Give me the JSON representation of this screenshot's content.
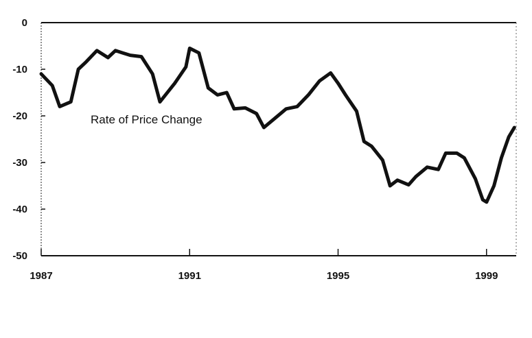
{
  "chart_data": {
    "type": "line",
    "title": "",
    "xlabel": "",
    "ylabel": "",
    "xlim": [
      1987,
      1999.8
    ],
    "ylim": [
      -50,
      0
    ],
    "x_ticks": [
      1987,
      1991,
      1995,
      1999
    ],
    "y_ticks": [
      0,
      -10,
      -20,
      -30,
      -40,
      -50
    ],
    "x_tick_labels": [
      "1987",
      "1991",
      "1995",
      "1999"
    ],
    "y_tick_labels": [
      "0",
      "-10",
      "-20",
      "-30",
      "-40",
      "-50"
    ],
    "grid": false,
    "annotation": "Rate of Price Change",
    "series": [
      {
        "color": "#111111",
        "x": [
          1987.0,
          1987.3,
          1987.5,
          1987.8,
          1988.0,
          1988.2,
          1988.5,
          1988.8,
          1989.0,
          1989.2,
          1989.4,
          1989.7,
          1990.0,
          1990.2,
          1990.4,
          1990.6,
          1990.9,
          1991.0,
          1991.25,
          1991.5,
          1991.75,
          1992.0,
          1992.2,
          1992.5,
          1992.8,
          1993.0,
          1993.3,
          1993.6,
          1993.9,
          1994.2,
          1994.5,
          1994.8,
          1995.0,
          1995.2,
          1995.5,
          1995.7,
          1995.9,
          1996.2,
          1996.4,
          1996.6,
          1996.9,
          1997.1,
          1997.4,
          1997.7,
          1997.9,
          1998.2,
          1998.4,
          1998.7,
          1998.9,
          1999.0,
          1999.2,
          1999.4,
          1999.6,
          1999.75
        ],
        "y": [
          -11,
          -13.5,
          -18,
          -17,
          -10,
          -8.5,
          -6,
          -7.5,
          -6,
          -6.5,
          -7,
          -7.3,
          -11,
          -17,
          -15,
          -13,
          -9.5,
          -5.5,
          -6.5,
          -14,
          -15.5,
          -15,
          -18.5,
          -18.3,
          -19.5,
          -22.5,
          -20.5,
          -18.5,
          -18,
          -15.5,
          -12.5,
          -10.8,
          -13,
          -15.5,
          -19,
          -25.5,
          -26.5,
          -29.5,
          -35,
          -33.8,
          -34.8,
          -33,
          -31,
          -31.5,
          -28,
          -28,
          -29,
          -33.5,
          -38,
          -38.5,
          -35,
          -29,
          -24.5,
          -22.5
        ]
      }
    ]
  }
}
